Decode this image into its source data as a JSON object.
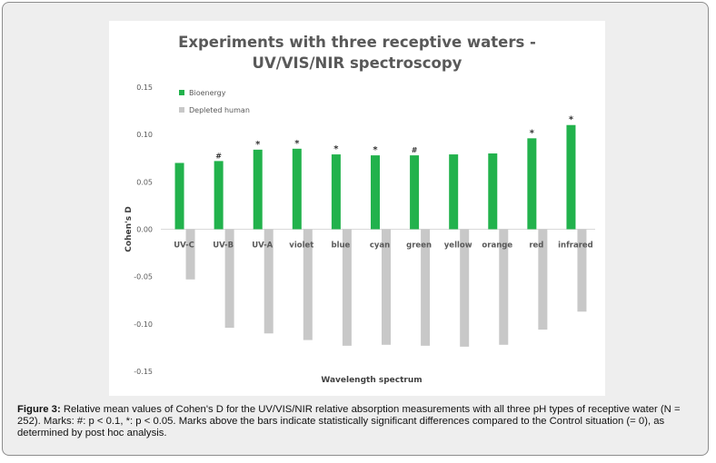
{
  "chart_data": {
    "type": "bar",
    "title_lines": [
      "Experiments with three receptive waters -",
      "UV/VIS/NIR spectroscopy"
    ],
    "xlabel": "Wavelength spectrum",
    "ylabel": "Cohen's D",
    "ylim": [
      -0.15,
      0.15
    ],
    "yticks": [
      "0.15",
      "0.10",
      "0.05",
      "0.00",
      "-0.05",
      "-0.10",
      "-0.15"
    ],
    "ytick_values": [
      0.15,
      0.1,
      0.05,
      0.0,
      -0.05,
      -0.1,
      -0.15
    ],
    "categories": [
      "UV-C",
      "UV-B",
      "UV-A",
      "violet",
      "blue",
      "cyan",
      "green",
      "yellow",
      "orange",
      "red",
      "infrared"
    ],
    "series": [
      {
        "name": "Bioenergy",
        "color": "#22b24c",
        "values": [
          0.07,
          0.072,
          0.084,
          0.085,
          0.079,
          0.078,
          0.078,
          0.079,
          0.08,
          0.096,
          0.11
        ],
        "marks": [
          "",
          "#",
          "*",
          "*",
          "*",
          "*",
          "#",
          "",
          "",
          "*",
          "*"
        ]
      },
      {
        "name": "Depleted human",
        "color": "#c8c8c8",
        "values": [
          -0.053,
          -0.104,
          -0.11,
          -0.117,
          -0.123,
          -0.122,
          -0.123,
          -0.124,
          -0.122,
          -0.106,
          -0.087
        ],
        "marks": [
          "",
          "",
          "",
          "",
          "",
          "",
          "",
          "",
          "",
          "",
          ""
        ]
      }
    ],
    "legend_position": "top-left",
    "grid": false
  },
  "caption": {
    "label": "Figure 3:",
    "text": " Relative mean values of Cohen's D for the UV/VIS/NIR relative absorption measurements with all three pH types of receptive water (N = 252). Marks: #: p < 0.1, *: p < 0.05. Marks above the bars indicate statistically significant differences compared to the Control situation (= 0), as determined by post hoc analysis."
  }
}
